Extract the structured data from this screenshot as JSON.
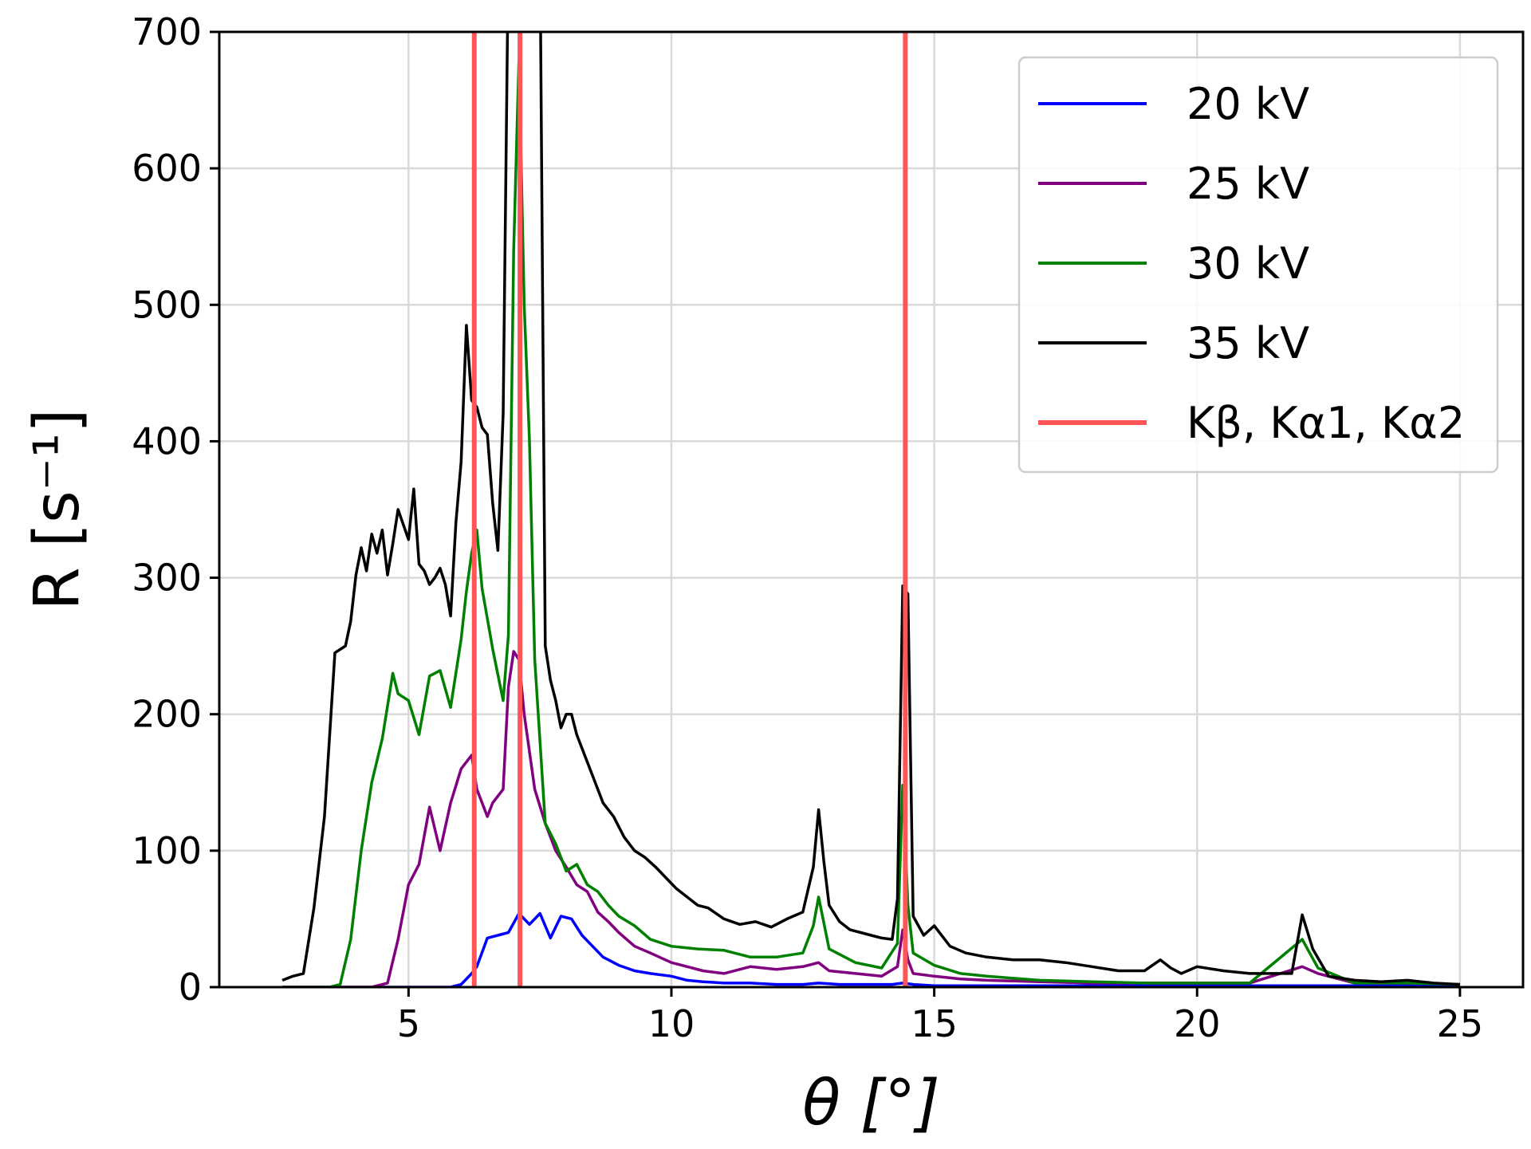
{
  "chart_data": {
    "type": "line",
    "xlabel": "θ [°]",
    "ylabel": "R [s⁻¹]",
    "xlim": [
      1.4,
      26.2
    ],
    "ylim": [
      0,
      700
    ],
    "xticks": [
      5,
      10,
      15,
      20,
      25
    ],
    "yticks": [
      0,
      100,
      200,
      300,
      400,
      500,
      600,
      700
    ],
    "grid": true,
    "legend_position": "top-right",
    "series": [
      {
        "name": "20 kV",
        "color": "#0000ff",
        "x": [
          2.6,
          3.0,
          3.5,
          4.0,
          4.5,
          5.0,
          5.5,
          5.8,
          6.0,
          6.2,
          6.3,
          6.5,
          6.7,
          6.9,
          7.1,
          7.3,
          7.5,
          7.7,
          7.9,
          8.1,
          8.3,
          8.5,
          8.7,
          9.0,
          9.3,
          9.6,
          10.0,
          10.3,
          10.6,
          11.0,
          11.5,
          12.0,
          12.5,
          12.8,
          13.2,
          13.7,
          14.2,
          14.4,
          14.6,
          15.0,
          16.0,
          17.0,
          18.0,
          19.0,
          20.0,
          21.0,
          22.0,
          23.0,
          24.0,
          25.0
        ],
        "y": [
          0,
          0,
          0,
          0,
          0,
          0,
          0,
          0,
          2,
          10,
          15,
          36,
          38,
          40,
          54,
          46,
          54,
          36,
          52,
          50,
          38,
          30,
          22,
          16,
          12,
          10,
          8,
          5,
          4,
          3,
          3,
          2,
          2,
          3,
          2,
          2,
          2,
          3,
          2,
          1,
          1,
          1,
          1,
          1,
          1,
          1,
          1,
          1,
          1,
          1
        ]
      },
      {
        "name": "25 kV",
        "color": "#800080",
        "x": [
          2.6,
          3.0,
          3.5,
          3.8,
          4.0,
          4.3,
          4.6,
          4.8,
          5.0,
          5.2,
          5.4,
          5.6,
          5.8,
          6.0,
          6.2,
          6.3,
          6.5,
          6.6,
          6.8,
          6.9,
          7.0,
          7.1,
          7.2,
          7.4,
          7.6,
          7.8,
          8.0,
          8.2,
          8.4,
          8.6,
          8.8,
          9.0,
          9.3,
          9.6,
          10.0,
          10.3,
          10.6,
          11.0,
          11.5,
          12.0,
          12.5,
          12.8,
          13.0,
          13.5,
          14.0,
          14.3,
          14.4,
          14.5,
          14.6,
          15.0,
          15.5,
          16.0,
          17.0,
          18.0,
          19.0,
          20.0,
          21.0,
          22.0,
          22.3,
          23.0,
          24.0,
          25.0
        ],
        "y": [
          0,
          0,
          0,
          0,
          0,
          0,
          3,
          35,
          75,
          90,
          132,
          100,
          135,
          160,
          170,
          145,
          125,
          135,
          145,
          220,
          246,
          240,
          200,
          145,
          120,
          100,
          88,
          75,
          70,
          55,
          48,
          40,
          30,
          25,
          18,
          15,
          12,
          10,
          15,
          13,
          15,
          18,
          12,
          10,
          8,
          15,
          42,
          20,
          10,
          8,
          6,
          5,
          4,
          3,
          3,
          3,
          3,
          15,
          10,
          3,
          3,
          2
        ]
      },
      {
        "name": "30 kV",
        "color": "#008000",
        "x": [
          2.6,
          3.0,
          3.3,
          3.5,
          3.7,
          3.9,
          4.1,
          4.3,
          4.5,
          4.7,
          4.8,
          5.0,
          5.2,
          5.4,
          5.6,
          5.8,
          6.0,
          6.1,
          6.2,
          6.3,
          6.4,
          6.6,
          6.8,
          6.9,
          7.0,
          7.1,
          7.2,
          7.3,
          7.4,
          7.6,
          7.8,
          8.0,
          8.2,
          8.4,
          8.6,
          8.8,
          9.0,
          9.3,
          9.6,
          10.0,
          10.5,
          11.0,
          11.5,
          12.0,
          12.5,
          12.7,
          12.8,
          13.0,
          13.5,
          14.0,
          14.3,
          14.4,
          14.5,
          14.6,
          15.0,
          15.5,
          16.0,
          17.0,
          18.0,
          19.0,
          20.0,
          21.0,
          22.0,
          22.3,
          23.0,
          24.0,
          25.0
        ],
        "y": [
          0,
          0,
          0,
          0,
          2,
          35,
          100,
          150,
          182,
          230,
          215,
          210,
          185,
          228,
          232,
          205,
          255,
          290,
          318,
          335,
          292,
          248,
          210,
          258,
          540,
          680,
          500,
          400,
          240,
          120,
          105,
          85,
          90,
          75,
          70,
          60,
          52,
          45,
          35,
          30,
          28,
          27,
          22,
          22,
          25,
          45,
          66,
          28,
          18,
          14,
          32,
          148,
          60,
          25,
          16,
          10,
          8,
          5,
          4,
          3,
          3,
          3,
          35,
          14,
          3,
          3,
          2
        ]
      },
      {
        "name": "35 kV",
        "color": "#000000",
        "x": [
          2.6,
          2.8,
          3.0,
          3.2,
          3.4,
          3.6,
          3.8,
          3.9,
          4.0,
          4.1,
          4.2,
          4.3,
          4.4,
          4.5,
          4.6,
          4.7,
          4.8,
          5.0,
          5.1,
          5.2,
          5.3,
          5.4,
          5.5,
          5.6,
          5.7,
          5.8,
          5.9,
          6.0,
          6.1,
          6.2,
          6.3,
          6.4,
          6.5,
          6.6,
          6.7,
          6.8,
          6.9,
          7.0,
          7.1,
          7.2,
          7.3,
          7.5,
          7.6,
          7.7,
          7.8,
          7.9,
          8.0,
          8.1,
          8.2,
          8.3,
          8.4,
          8.5,
          8.7,
          8.9,
          9.1,
          9.3,
          9.5,
          9.7,
          9.9,
          10.1,
          10.3,
          10.5,
          10.7,
          11.0,
          11.3,
          11.6,
          11.9,
          12.2,
          12.5,
          12.7,
          12.8,
          12.9,
          13.0,
          13.2,
          13.4,
          13.6,
          13.8,
          14.0,
          14.2,
          14.3,
          14.4,
          14.5,
          14.6,
          14.8,
          15.0,
          15.3,
          15.6,
          16.0,
          16.5,
          17.0,
          17.5,
          18.0,
          18.5,
          19.0,
          19.3,
          19.5,
          19.7,
          20.0,
          20.5,
          21.0,
          21.5,
          21.8,
          22.0,
          22.2,
          22.5,
          23.0,
          23.5,
          24.0,
          24.5,
          25.0
        ],
        "y": [
          5,
          8,
          10,
          58,
          125,
          245,
          250,
          268,
          302,
          322,
          305,
          332,
          318,
          335,
          302,
          325,
          350,
          328,
          365,
          310,
          305,
          295,
          300,
          307,
          295,
          272,
          340,
          385,
          485,
          430,
          425,
          410,
          405,
          355,
          320,
          420,
          760,
          770,
          730,
          720,
          720,
          760,
          250,
          225,
          210,
          190,
          200,
          200,
          185,
          175,
          165,
          155,
          135,
          125,
          110,
          100,
          95,
          88,
          80,
          72,
          66,
          60,
          58,
          50,
          46,
          48,
          44,
          50,
          55,
          88,
          130,
          92,
          60,
          48,
          42,
          40,
          38,
          36,
          35,
          65,
          294,
          288,
          52,
          38,
          45,
          30,
          25,
          22,
          20,
          20,
          18,
          15,
          12,
          12,
          20,
          14,
          10,
          15,
          12,
          10,
          10,
          10,
          53,
          28,
          8,
          5,
          4,
          5,
          3,
          2
        ]
      },
      {
        "name": "Kβ, Kα1, Kα2",
        "color": "#ff5555",
        "type": "vlines",
        "x": [
          6.25,
          7.12,
          14.45
        ]
      }
    ],
    "legend": [
      {
        "label": "20 kV",
        "color": "#0000ff"
      },
      {
        "label": "25 kV",
        "color": "#800080"
      },
      {
        "label": "30 kV",
        "color": "#008000"
      },
      {
        "label": "35 kV",
        "color": "#000000"
      },
      {
        "label": "Kβ, Kα1, Kα2",
        "color": "#ff5555"
      }
    ]
  }
}
